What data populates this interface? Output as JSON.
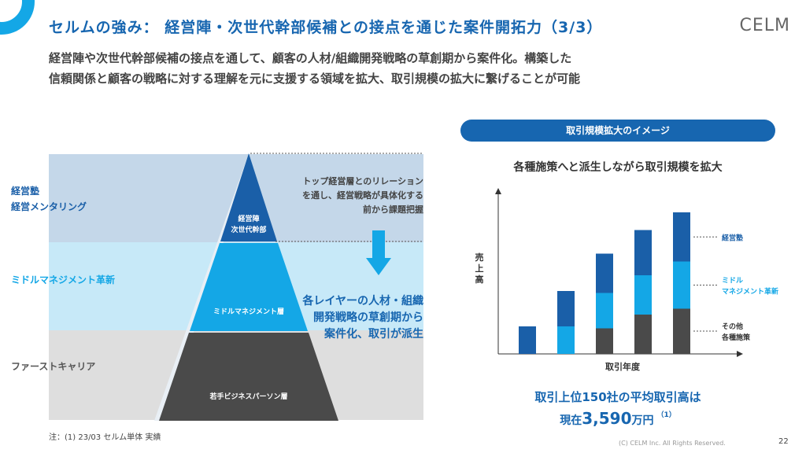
{
  "header": {
    "title": "セルムの強み： 経営陣・次世代幹部候補との接点を通じた案件開拓力（3/3）",
    "logo": "CELM"
  },
  "subtitle": {
    "line1": "経営陣や次世代幹部候補の接点を通して、顧客の人材/組織開発戦略の草創期から案件化。構築した",
    "line2": "信頼関係と顧客の戦略に対する理解を元に支援する領域を拡大、取引規模の拡大に繋げることが可能"
  },
  "layers": {
    "top": {
      "line1": "経営塾",
      "line2": "経営メンタリング"
    },
    "middle": {
      "label": "ミドルマネジメント革新"
    },
    "bottom": {
      "label": "ファーストキャリア"
    }
  },
  "pyramid": {
    "top": {
      "line1": "経営陣",
      "line2": "次世代幹部"
    },
    "middle": "ミドルマネジメント層",
    "bottom": "若手ビジネスパーソン層"
  },
  "notes": {
    "top": {
      "line1": "トップ経営層とのリレーション",
      "line2": "を通し、経営戦略が具体化する",
      "line3": "前から課題把握"
    },
    "middle": {
      "line1": "各レイヤーの人材・組織",
      "line2": "開発戦略の草創期から",
      "line3": "案件化、取引が派生"
    }
  },
  "footnote": "注：(1) 23/03 セルム単体 実績",
  "right_panel": {
    "pill": "取引規模拡大のイメージ",
    "chart_title": "各種施策へと派生しながら取引規模を拡大"
  },
  "chart_data": {
    "type": "bar",
    "stacked": true,
    "xlabel": "取引年度",
    "ylabel": "売上高",
    "categories": [
      "",
      "",
      "",
      "",
      ""
    ],
    "series": [
      {
        "name": "その他 各種施策",
        "values": [
          0,
          0,
          1.3,
          2.0,
          2.3
        ],
        "color": "#4a4a4a"
      },
      {
        "name": "ミドル マネジメント革新",
        "values": [
          0,
          1.4,
          1.8,
          2.0,
          2.4
        ],
        "color": "#14a7e6"
      },
      {
        "name": "経営塾",
        "values": [
          1.4,
          1.8,
          2.0,
          2.3,
          2.5
        ],
        "color": "#1a5fa8"
      }
    ],
    "ylim": [
      0,
      8.0
    ],
    "grid": false,
    "legend": "right"
  },
  "summary": {
    "line1": "取引上位150社の平均取引高は",
    "prefix": "現在",
    "value": "3,590",
    "unit": "万円",
    "note": "（1）"
  },
  "footer": {
    "copyright": "(C) CELM Inc. All Rights Reserved.",
    "page": "22"
  }
}
